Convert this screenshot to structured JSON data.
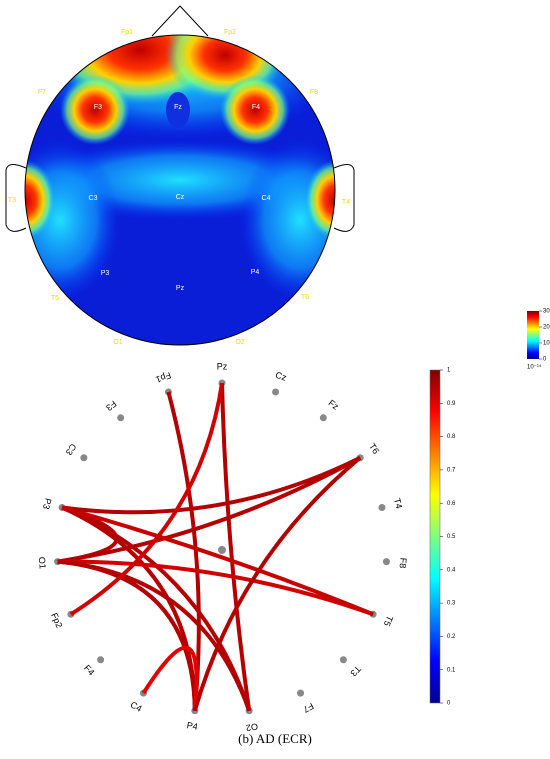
{
  "topomap": {
    "electrodes": [
      "Fp1",
      "Fp2",
      "F7",
      "F3",
      "Fz",
      "F4",
      "F8",
      "T3",
      "C3",
      "Cz",
      "C4",
      "T4",
      "T5",
      "P3",
      "Pz",
      "P4",
      "T6",
      "O1",
      "O2"
    ],
    "colorbar": {
      "lim": [
        0,
        30
      ],
      "ticks": [
        0,
        10,
        20,
        30
      ],
      "exponent": "10⁻¹⁴"
    }
  },
  "connectivity": {
    "nodes": [
      "Pz",
      "Cz",
      "Fz",
      "T6",
      "T4",
      "F8",
      "T5",
      "T3",
      "F7",
      "O2",
      "P4",
      "C4",
      "F4",
      "Fp2",
      "O1",
      "P3",
      "C3",
      "F3",
      "Fp1"
    ],
    "edges": [
      {
        "from": "Fp1",
        "to": "P4",
        "value": 0.95
      },
      {
        "from": "Pz",
        "to": "O2",
        "value": 0.95
      },
      {
        "from": "P3",
        "to": "T6",
        "value": 0.95
      },
      {
        "from": "P3",
        "to": "O2",
        "value": 0.95
      },
      {
        "from": "P3",
        "to": "P4",
        "value": 0.95
      },
      {
        "from": "P3",
        "to": "O1",
        "value": 0.95
      },
      {
        "from": "O1",
        "to": "T6",
        "value": 0.95
      },
      {
        "from": "O1",
        "to": "T5",
        "value": 0.92
      },
      {
        "from": "O1",
        "to": "P4",
        "value": 0.95
      },
      {
        "from": "O1",
        "to": "O2",
        "value": 0.95
      },
      {
        "from": "Fp2",
        "to": "Pz",
        "value": 0.92
      },
      {
        "from": "C4",
        "to": "P4",
        "value": 0.9
      },
      {
        "from": "T5",
        "to": "P3",
        "value": 0.93
      },
      {
        "from": "T6",
        "to": "P4",
        "value": 0.95
      }
    ],
    "colorbar": {
      "lim": [
        0,
        1
      ],
      "ticks": [
        0,
        0.1,
        0.2,
        0.3,
        0.4,
        0.5,
        0.6,
        0.7,
        0.8,
        0.9,
        1
      ]
    }
  },
  "caption": "(b) AD (ECR)"
}
